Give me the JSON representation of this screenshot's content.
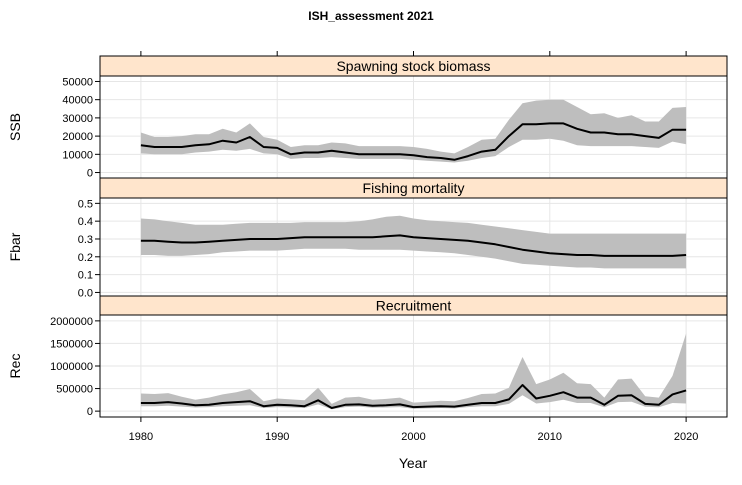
{
  "chart_data": {
    "type": "area",
    "title": "ISH_assessment 2021",
    "xlabel": "Year",
    "x_ticks": [
      1980,
      1990,
      2000,
      2010,
      2020
    ],
    "xlim": [
      1977,
      2023
    ],
    "years": [
      1980,
      1981,
      1982,
      1983,
      1984,
      1985,
      1986,
      1987,
      1988,
      1989,
      1990,
      1991,
      1992,
      1993,
      1994,
      1995,
      1996,
      1997,
      1998,
      1999,
      2000,
      2001,
      2002,
      2003,
      2004,
      2005,
      2006,
      2007,
      2008,
      2009,
      2010,
      2011,
      2012,
      2013,
      2014,
      2015,
      2016,
      2017,
      2018,
      2019,
      2020
    ],
    "panels": [
      {
        "id": "ssb",
        "strip": "Spawning stock biomass",
        "ylabel": "SSB",
        "ylim": [
          -3000,
          53000
        ],
        "y_ticks": [
          0,
          10000,
          20000,
          30000,
          40000,
          50000
        ],
        "y_tick_labels": [
          "0",
          "10000",
          "20000",
          "30000",
          "40000",
          "50000"
        ],
        "median": [
          15000,
          14000,
          14000,
          14000,
          15000,
          15500,
          17500,
          16500,
          19500,
          14000,
          13500,
          10000,
          11000,
          11000,
          12000,
          11000,
          10000,
          10000,
          10000,
          10000,
          9500,
          8500,
          8000,
          7000,
          9000,
          11500,
          12500,
          20000,
          26500,
          26500,
          27000,
          27000,
          24000,
          22000,
          22000,
          21000,
          21000,
          20000,
          19000,
          23500,
          23500
        ],
        "lower": [
          10500,
          10000,
          10000,
          10000,
          11000,
          11500,
          12500,
          12000,
          13000,
          10500,
          10000,
          7500,
          8000,
          8000,
          8500,
          8000,
          7500,
          7500,
          7500,
          7500,
          7000,
          6500,
          6000,
          5500,
          6500,
          8000,
          9000,
          14000,
          18000,
          18000,
          18500,
          17500,
          15000,
          14500,
          14500,
          14500,
          14500,
          14000,
          13500,
          17000,
          15500
        ],
        "upper": [
          22000,
          19500,
          19500,
          20000,
          21000,
          21000,
          24000,
          22000,
          27000,
          19500,
          18000,
          14000,
          15000,
          15000,
          16500,
          16000,
          14500,
          14500,
          14500,
          14500,
          14000,
          13000,
          11500,
          10500,
          14000,
          18000,
          18500,
          29000,
          38000,
          39500,
          40000,
          40000,
          36000,
          32000,
          32500,
          30000,
          31500,
          28000,
          28000,
          35500,
          36000
        ]
      },
      {
        "id": "fbar",
        "strip": "Fishing mortality",
        "ylabel": "Fbar",
        "ylim": [
          -0.02,
          0.53
        ],
        "y_ticks": [
          0.0,
          0.1,
          0.2,
          0.3,
          0.4,
          0.5
        ],
        "y_tick_labels": [
          "0.0",
          "0.1",
          "0.2",
          "0.3",
          "0.4",
          "0.5"
        ],
        "median": [
          0.29,
          0.29,
          0.285,
          0.28,
          0.28,
          0.285,
          0.29,
          0.295,
          0.3,
          0.3,
          0.3,
          0.305,
          0.31,
          0.31,
          0.31,
          0.31,
          0.31,
          0.31,
          0.315,
          0.32,
          0.31,
          0.305,
          0.3,
          0.295,
          0.29,
          0.28,
          0.27,
          0.255,
          0.24,
          0.23,
          0.22,
          0.215,
          0.21,
          0.21,
          0.205,
          0.205,
          0.205,
          0.205,
          0.205,
          0.205,
          0.21
        ],
        "lower": [
          0.21,
          0.21,
          0.205,
          0.205,
          0.21,
          0.215,
          0.225,
          0.23,
          0.235,
          0.235,
          0.235,
          0.24,
          0.245,
          0.245,
          0.245,
          0.245,
          0.24,
          0.24,
          0.24,
          0.24,
          0.235,
          0.23,
          0.225,
          0.22,
          0.21,
          0.2,
          0.19,
          0.175,
          0.16,
          0.155,
          0.15,
          0.145,
          0.14,
          0.14,
          0.135,
          0.135,
          0.135,
          0.135,
          0.135,
          0.135,
          0.135
        ],
        "upper": [
          0.415,
          0.41,
          0.4,
          0.39,
          0.38,
          0.38,
          0.38,
          0.385,
          0.39,
          0.39,
          0.39,
          0.39,
          0.395,
          0.395,
          0.395,
          0.395,
          0.4,
          0.41,
          0.425,
          0.43,
          0.415,
          0.405,
          0.4,
          0.395,
          0.39,
          0.38,
          0.37,
          0.36,
          0.35,
          0.34,
          0.33,
          0.33,
          0.33,
          0.33,
          0.33,
          0.33,
          0.33,
          0.33,
          0.33,
          0.33,
          0.33
        ]
      },
      {
        "id": "rec",
        "strip": "Recruitment",
        "ylabel": "Rec",
        "ylim": [
          -130000,
          2130000
        ],
        "y_ticks": [
          0,
          500000,
          1000000,
          1500000,
          2000000
        ],
        "y_tick_labels": [
          "0",
          "500000",
          "1000000",
          "1500000",
          "2000000"
        ],
        "median": [
          180000,
          180000,
          200000,
          170000,
          130000,
          140000,
          180000,
          200000,
          220000,
          110000,
          140000,
          130000,
          110000,
          240000,
          70000,
          140000,
          150000,
          120000,
          130000,
          150000,
          90000,
          100000,
          110000,
          100000,
          140000,
          180000,
          180000,
          260000,
          580000,
          280000,
          340000,
          420000,
          300000,
          300000,
          140000,
          340000,
          350000,
          160000,
          140000,
          370000,
          460000
        ],
        "lower": [
          110000,
          110000,
          120000,
          100000,
          80000,
          90000,
          110000,
          120000,
          130000,
          70000,
          90000,
          80000,
          70000,
          150000,
          40000,
          90000,
          100000,
          75000,
          80000,
          90000,
          55000,
          60000,
          70000,
          60000,
          90000,
          110000,
          110000,
          160000,
          350000,
          170000,
          200000,
          250000,
          180000,
          180000,
          85000,
          200000,
          210000,
          95000,
          85000,
          180000,
          170000
        ],
        "upper": [
          390000,
          380000,
          400000,
          320000,
          250000,
          300000,
          370000,
          420000,
          490000,
          220000,
          280000,
          260000,
          240000,
          520000,
          160000,
          300000,
          320000,
          250000,
          270000,
          300000,
          190000,
          210000,
          230000,
          220000,
          290000,
          380000,
          390000,
          520000,
          1200000,
          600000,
          700000,
          850000,
          620000,
          600000,
          300000,
          700000,
          720000,
          330000,
          300000,
          780000,
          1720000
        ]
      }
    ],
    "grid": true,
    "colors": {
      "strip_fill": "#ffe5cc",
      "band": "#bebebe",
      "median_line": "#000000",
      "grid": "#e6e6e6"
    }
  }
}
